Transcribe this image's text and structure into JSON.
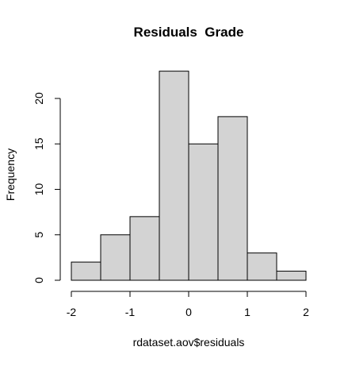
{
  "chart_data": {
    "type": "bar",
    "title": "Residuals  Grade",
    "xlabel": "rdataset.aov$residuals",
    "ylabel": "Frequency",
    "bins": [
      {
        "start": -2.0,
        "end": -1.5,
        "count": 2
      },
      {
        "start": -1.5,
        "end": -1.0,
        "count": 5
      },
      {
        "start": -1.0,
        "end": -0.5,
        "count": 7
      },
      {
        "start": -0.5,
        "end": 0.0,
        "count": 23
      },
      {
        "start": 0.0,
        "end": 0.5,
        "count": 15
      },
      {
        "start": 0.5,
        "end": 1.0,
        "count": 18
      },
      {
        "start": 1.0,
        "end": 1.5,
        "count": 3
      },
      {
        "start": 1.5,
        "end": 2.0,
        "count": 1
      }
    ],
    "xticks": [
      -2,
      -1,
      0,
      1,
      2
    ],
    "xtick_labels": [
      "-2",
      "-1",
      "0",
      "1",
      "2"
    ],
    "yticks": [
      0,
      5,
      10,
      15,
      20
    ],
    "ytick_labels": [
      "0",
      "5",
      "10",
      "15",
      "20"
    ],
    "xlim": [
      -2,
      2
    ],
    "ylim": [
      0,
      23
    ],
    "grid": false,
    "legend": "none",
    "colors": {
      "bar_fill": "#d3d3d3",
      "bar_stroke": "#000000"
    }
  }
}
